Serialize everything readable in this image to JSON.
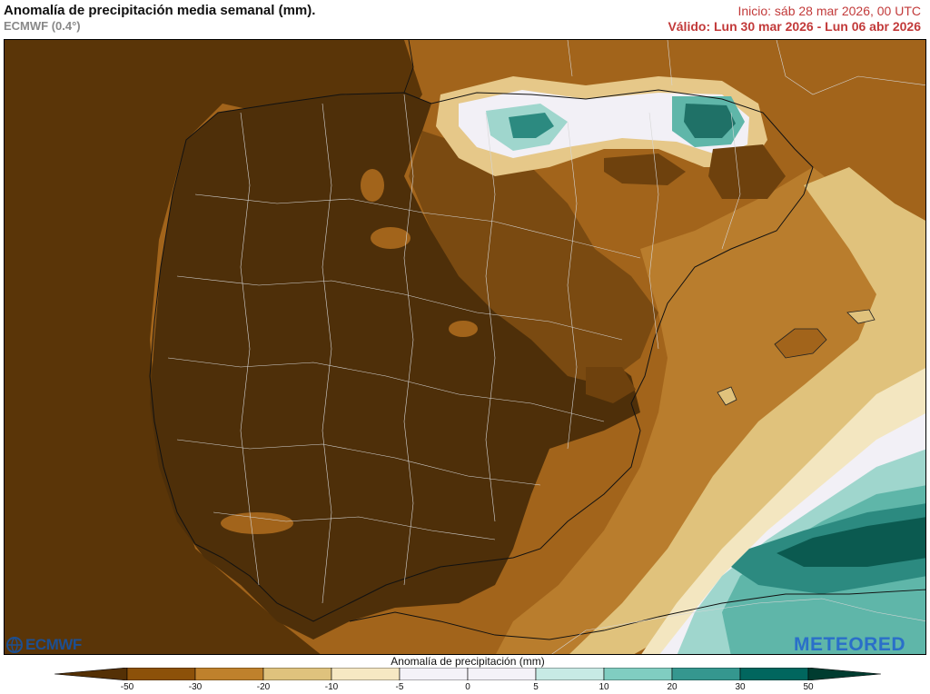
{
  "header": {
    "title": "Anomalía de precipitación media semanal (mm).",
    "model": "ECMWF (0.4°)",
    "init": "Inicio:  sáb 28 mar 2026, 00 UTC",
    "valid": "Válido: Lun 30 mar 2026 - Lun 06 abr 2026"
  },
  "legend": {
    "title": "Anomalía de precipitación (mm)",
    "ticks": [
      "-50",
      "-30",
      "-20",
      "-10",
      "-5",
      "0",
      "5",
      "10",
      "20",
      "30",
      "50"
    ],
    "colors": [
      "#543005",
      "#8c5109",
      "#bf812c",
      "#dfc27d",
      "#f6e8c3",
      "#f4f2f8",
      "#f4f2f8",
      "#c7eae5",
      "#80cdc1",
      "#35978f",
      "#01665e",
      "#003c30"
    ]
  },
  "logos": {
    "ecmwf": "ECMWF",
    "meteored": "METEORED"
  }
}
